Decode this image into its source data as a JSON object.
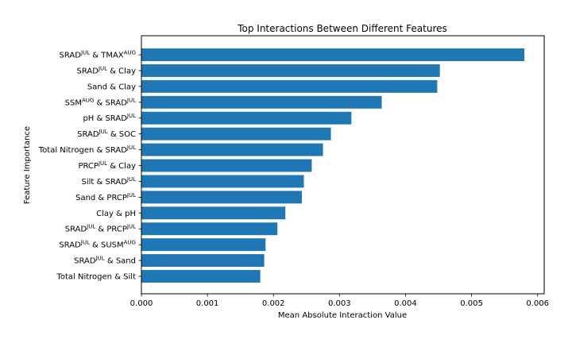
{
  "chart_data": {
    "type": "bar",
    "orientation": "horizontal",
    "title": "Top Interactions Between Different Features",
    "xlabel": "Mean Absolute Interaction Value",
    "ylabel": "Feature Importance",
    "xlim": [
      0,
      0.0061
    ],
    "xticks": [
      "0.000",
      "0.001",
      "0.002",
      "0.003",
      "0.004",
      "0.005",
      "0.006"
    ],
    "xtick_values": [
      0,
      0.001,
      0.002,
      0.003,
      0.004,
      0.005,
      0.006
    ],
    "bar_color": "#1f77b4",
    "grid": false,
    "categories": [
      {
        "label": [
          {
            "t": "SRAD"
          },
          {
            "t": "JUL",
            "sup": true
          },
          {
            "t": " & TMAX"
          },
          {
            "t": "AUG",
            "sup": true
          }
        ]
      },
      {
        "label": [
          {
            "t": "SRAD"
          },
          {
            "t": "JUL",
            "sup": true
          },
          {
            "t": " & Clay"
          }
        ]
      },
      {
        "label": [
          {
            "t": "Sand & Clay"
          }
        ]
      },
      {
        "label": [
          {
            "t": "SSM"
          },
          {
            "t": "AUG",
            "sup": true
          },
          {
            "t": " & SRAD"
          },
          {
            "t": "JUL",
            "sup": true
          }
        ]
      },
      {
        "label": [
          {
            "t": "pH & SRAD"
          },
          {
            "t": "JUL",
            "sup": true
          }
        ]
      },
      {
        "label": [
          {
            "t": "SRAD"
          },
          {
            "t": "JUL",
            "sup": true
          },
          {
            "t": " & SOC"
          }
        ]
      },
      {
        "label": [
          {
            "t": "Total Nitrogen & SRAD"
          },
          {
            "t": "JUL",
            "sup": true
          }
        ]
      },
      {
        "label": [
          {
            "t": "PRCP"
          },
          {
            "t": "JUL",
            "sup": true
          },
          {
            "t": " & Clay"
          }
        ]
      },
      {
        "label": [
          {
            "t": "Silt & SRAD"
          },
          {
            "t": "JUL",
            "sup": true
          }
        ]
      },
      {
        "label": [
          {
            "t": "Sand & PRCP"
          },
          {
            "t": "JUL",
            "sup": true
          }
        ]
      },
      {
        "label": [
          {
            "t": "Clay & pH"
          }
        ]
      },
      {
        "label": [
          {
            "t": "SRAD"
          },
          {
            "t": "JUL",
            "sup": true
          },
          {
            "t": " & PRCP"
          },
          {
            "t": "JUL",
            "sup": true
          }
        ]
      },
      {
        "label": [
          {
            "t": "SRAD"
          },
          {
            "t": "JUL",
            "sup": true
          },
          {
            "t": " & SUSM"
          },
          {
            "t": "AUG",
            "sup": true
          }
        ]
      },
      {
        "label": [
          {
            "t": "SRAD"
          },
          {
            "t": "JUL",
            "sup": true
          },
          {
            "t": " & Sand"
          }
        ]
      },
      {
        "label": [
          {
            "t": "Total Nitrogen & Silt"
          }
        ]
      }
    ],
    "values": [
      0.0058,
      0.00452,
      0.00448,
      0.00364,
      0.00318,
      0.00287,
      0.00275,
      0.00258,
      0.00246,
      0.00243,
      0.00218,
      0.00206,
      0.00188,
      0.00186,
      0.0018
    ]
  }
}
